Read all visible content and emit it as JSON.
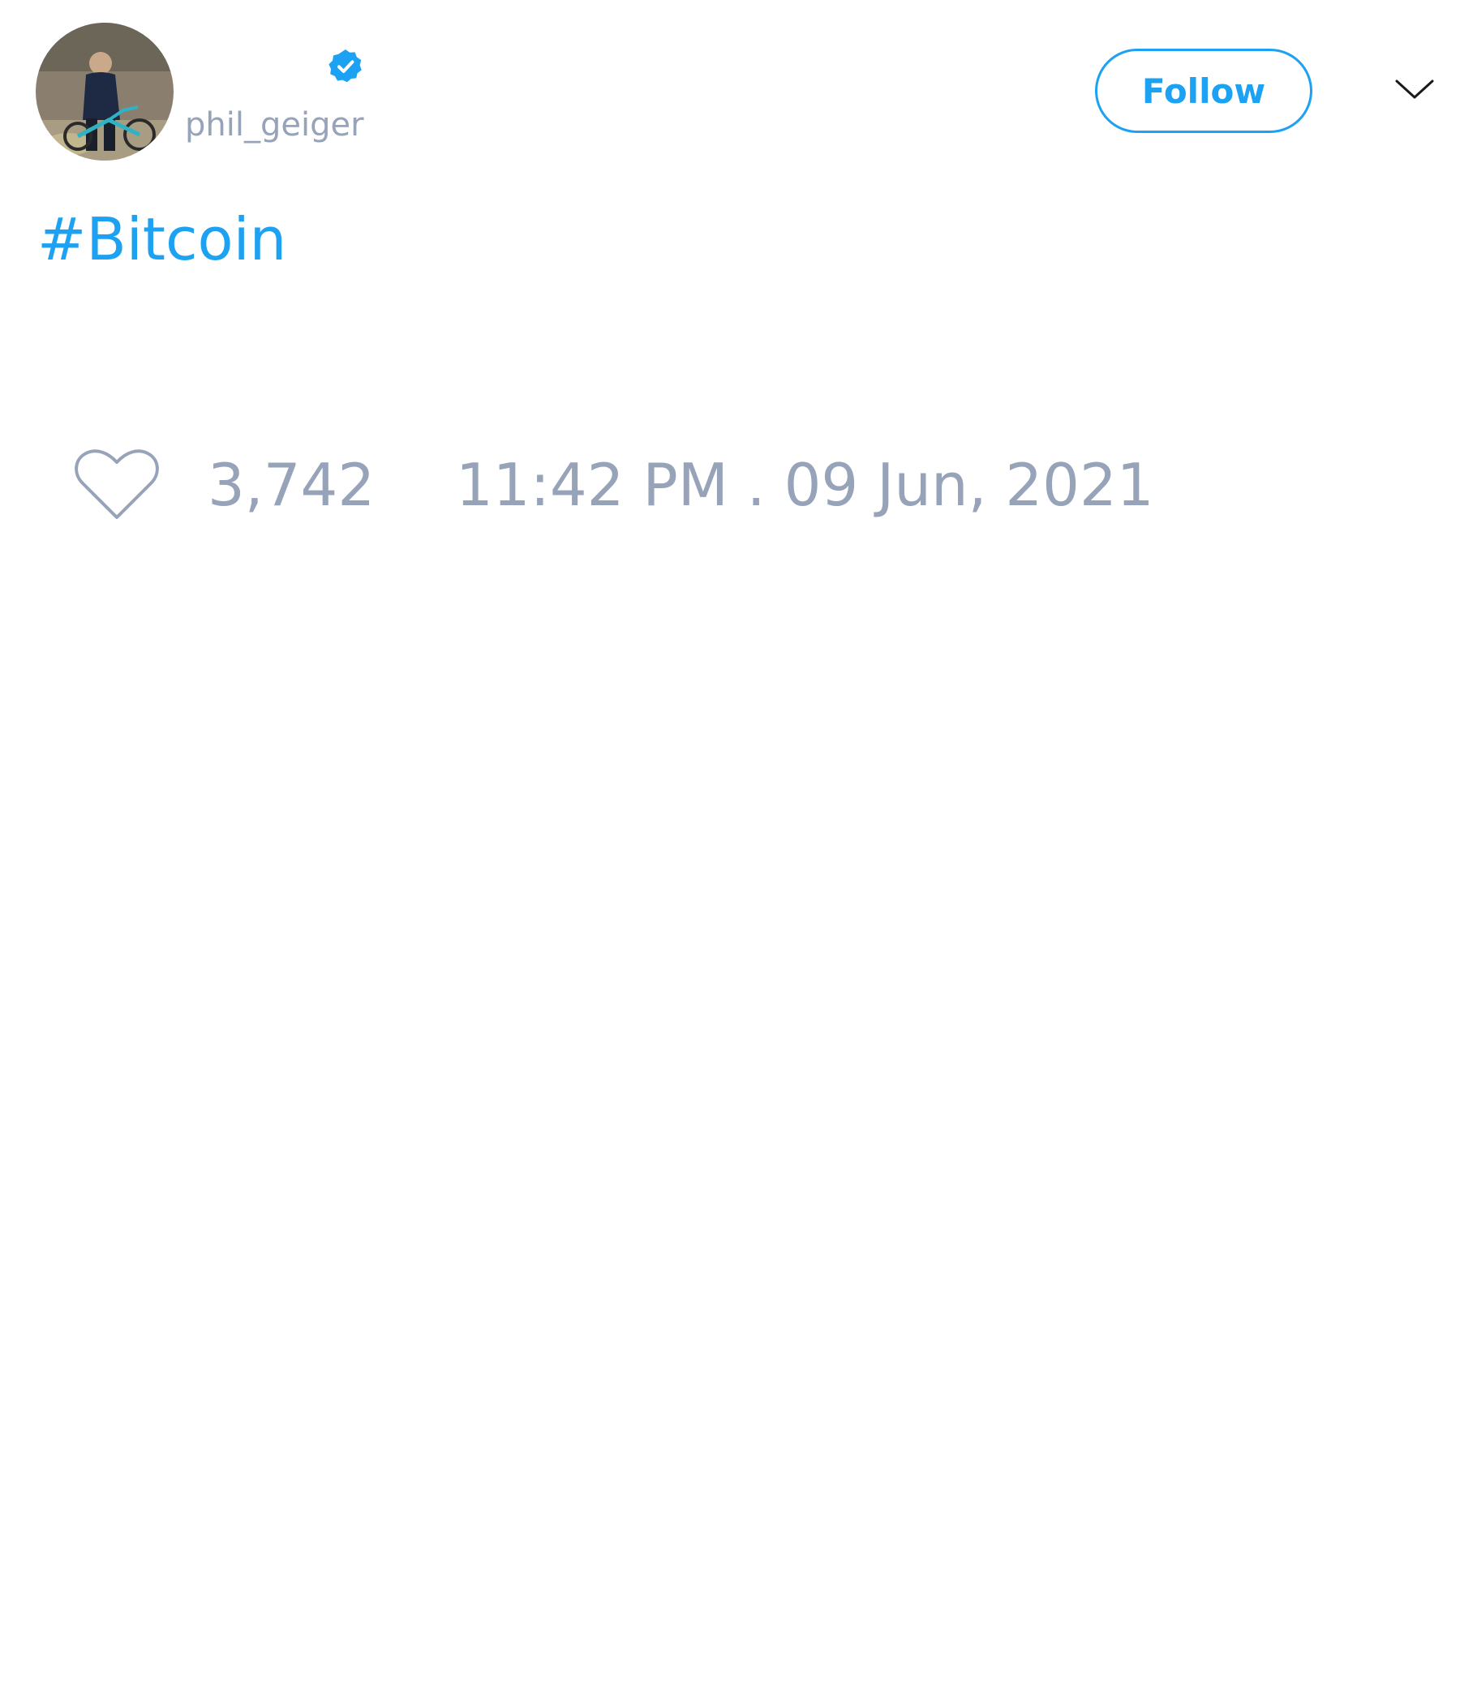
{
  "author": {
    "handle": "phil_geiger",
    "verified": true,
    "avatar_icon": "user-photo-with-bicycle"
  },
  "header": {
    "follow_label": "Follow",
    "menu_icon": "chevron-down-icon"
  },
  "tweet": {
    "hashtag": "#Bitcoin"
  },
  "footer": {
    "like_icon": "heart-outline-icon",
    "like_count": "3,742",
    "timestamp": "11:42 PM . 09 Jun, 2021"
  },
  "colors": {
    "accent": "#1da1f2",
    "muted_text": "#96a3b8",
    "background": "#ffffff"
  }
}
